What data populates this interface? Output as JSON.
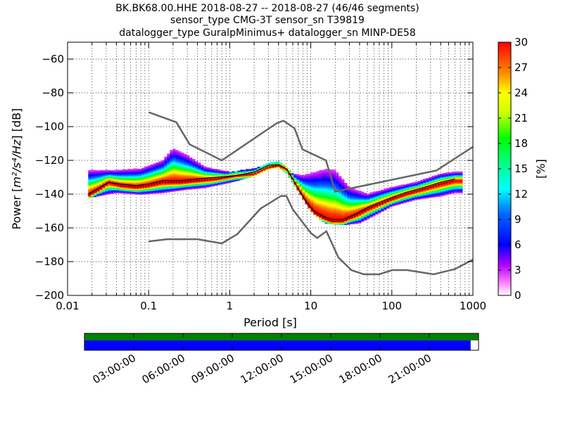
{
  "chart_data": {
    "type": "heatmap",
    "title_lines": [
      "BK.BK68.00.HHE   2018-08-27 -- 2018-08-27  (46/46 segments)",
      "sensor_type CMG-3T sensor_sn T39819",
      "datalogger_type GuralpMinimus+ datalogger_sn MINP-DE58"
    ],
    "xlabel": "Period [s]",
    "ylabel_prefix": "Power [",
    "ylabel_unit": "m²/s⁴/Hz",
    "ylabel_suffix": "] [dB]",
    "x_scale": "log",
    "xlim": [
      0.01,
      1000
    ],
    "ylim": [
      -200,
      -50
    ],
    "x_ticks": [
      {
        "v": 0.01,
        "label": "0.01"
      },
      {
        "v": 0.1,
        "label": "0.1"
      },
      {
        "v": 1,
        "label": "1"
      },
      {
        "v": 10,
        "label": "10"
      },
      {
        "v": 100,
        "label": "100"
      },
      {
        "v": 1000,
        "label": "1000"
      }
    ],
    "y_ticks": [
      {
        "v": -60,
        "label": "−60"
      },
      {
        "v": -80,
        "label": "−80"
      },
      {
        "v": -100,
        "label": "−100"
      },
      {
        "v": -120,
        "label": "−120"
      },
      {
        "v": -140,
        "label": "−140"
      },
      {
        "v": -160,
        "label": "−160"
      },
      {
        "v": -180,
        "label": "−180"
      },
      {
        "v": -200,
        "label": "−200"
      }
    ],
    "grid": true,
    "colorbar": {
      "label": "[%]",
      "range": [
        0,
        30
      ],
      "ticks": [
        {
          "v": 0,
          "label": "0"
        },
        {
          "v": 3,
          "label": "3"
        },
        {
          "v": 6,
          "label": "6"
        },
        {
          "v": 9,
          "label": "9"
        },
        {
          "v": 12,
          "label": "12"
        },
        {
          "v": 15,
          "label": "15"
        },
        {
          "v": 18,
          "label": "18"
        },
        {
          "v": 21,
          "label": "21"
        },
        {
          "v": 24,
          "label": "24"
        },
        {
          "v": 27,
          "label": "27"
        },
        {
          "v": 30,
          "label": "30"
        }
      ]
    },
    "nhnm": [
      [
        0.1,
        -91.5
      ],
      [
        0.22,
        -97.4
      ],
      [
        0.32,
        -110.5
      ],
      [
        0.8,
        -120
      ],
      [
        3.8,
        -98
      ],
      [
        4.6,
        -96.5
      ],
      [
        6.3,
        -101
      ],
      [
        7.9,
        -113.5
      ],
      [
        15.4,
        -120
      ],
      [
        20,
        -138.5
      ],
      [
        354.8,
        -126
      ],
      [
        1000,
        -112
      ]
    ],
    "nlnm": [
      [
        0.1,
        -168
      ],
      [
        0.17,
        -166.7
      ],
      [
        0.4,
        -166.7
      ],
      [
        0.8,
        -169.2
      ],
      [
        1.24,
        -163.7
      ],
      [
        2.4,
        -148.6
      ],
      [
        4.3,
        -141.1
      ],
      [
        5,
        -141.1
      ],
      [
        6,
        -149
      ],
      [
        10,
        -163
      ],
      [
        12,
        -166
      ],
      [
        15.6,
        -162
      ],
      [
        21.9,
        -177.5
      ],
      [
        31.6,
        -185
      ],
      [
        45,
        -187.5
      ],
      [
        70,
        -187.5
      ],
      [
        101,
        -185
      ],
      [
        154,
        -185
      ],
      [
        328,
        -187.5
      ],
      [
        600,
        -184.4
      ],
      [
        1000,
        -178.8
      ]
    ],
    "mean_curve": [
      [
        0.018,
        -140
      ],
      [
        0.025,
        -136
      ],
      [
        0.032,
        -133
      ],
      [
        0.045,
        -134
      ],
      [
        0.07,
        -135
      ],
      [
        0.1,
        -134
      ],
      [
        0.15,
        -132
      ],
      [
        0.25,
        -132
      ],
      [
        0.4,
        -131
      ],
      [
        0.7,
        -130
      ],
      [
        1.2,
        -129
      ],
      [
        2,
        -127
      ],
      [
        3,
        -123
      ],
      [
        4,
        -122.5
      ],
      [
        5,
        -125
      ],
      [
        6,
        -131
      ],
      [
        7,
        -137
      ],
      [
        9,
        -145
      ],
      [
        11,
        -150
      ],
      [
        14,
        -153
      ],
      [
        18,
        -155
      ],
      [
        25,
        -155
      ],
      [
        35,
        -152
      ],
      [
        50,
        -148
      ],
      [
        70,
        -145
      ],
      [
        100,
        -142
      ],
      [
        150,
        -139
      ],
      [
        250,
        -136
      ],
      [
        400,
        -133
      ],
      [
        600,
        -131
      ]
    ],
    "mode_curve": [
      [
        0.018,
        -141
      ],
      [
        0.025,
        -137
      ],
      [
        0.032,
        -133
      ],
      [
        0.045,
        -135
      ],
      [
        0.07,
        -136
      ],
      [
        0.1,
        -135
      ],
      [
        0.15,
        -133
      ],
      [
        0.25,
        -133
      ],
      [
        0.4,
        -132
      ],
      [
        0.7,
        -131
      ],
      [
        1.2,
        -129
      ],
      [
        2,
        -128
      ],
      [
        3,
        -124
      ],
      [
        4,
        -123
      ],
      [
        5,
        -125
      ],
      [
        6,
        -131
      ],
      [
        7,
        -137
      ],
      [
        9,
        -146
      ],
      [
        11,
        -151
      ],
      [
        14,
        -154
      ],
      [
        18,
        -156
      ],
      [
        25,
        -156
      ],
      [
        35,
        -153
      ],
      [
        50,
        -149
      ],
      [
        70,
        -146
      ],
      [
        100,
        -143
      ],
      [
        150,
        -140
      ],
      [
        250,
        -137
      ],
      [
        400,
        -134
      ],
      [
        600,
        -132
      ]
    ],
    "spread_upper": [
      [
        0.018,
        -126
      ],
      [
        0.04,
        -126
      ],
      [
        0.08,
        -125
      ],
      [
        0.15,
        -120
      ],
      [
        0.2,
        -113
      ],
      [
        0.3,
        -117
      ],
      [
        0.5,
        -124
      ],
      [
        1,
        -127
      ],
      [
        2,
        -125
      ],
      [
        3,
        -122
      ],
      [
        4,
        -121
      ],
      [
        5,
        -124
      ],
      [
        6,
        -128
      ],
      [
        8,
        -129
      ],
      [
        15,
        -125.5
      ],
      [
        20,
        -126
      ],
      [
        30,
        -136
      ],
      [
        50,
        -140
      ],
      [
        100,
        -136
      ],
      [
        200,
        -133
      ],
      [
        400,
        -128
      ],
      [
        600,
        -127
      ]
    ],
    "spread_lower": [
      [
        0.018,
        -142
      ],
      [
        0.04,
        -139
      ],
      [
        0.08,
        -140
      ],
      [
        0.15,
        -139
      ],
      [
        0.3,
        -137
      ],
      [
        0.5,
        -136
      ],
      [
        1,
        -133
      ],
      [
        2,
        -129
      ],
      [
        3,
        -125
      ],
      [
        4,
        -124
      ],
      [
        5,
        -127
      ],
      [
        6,
        -133
      ],
      [
        8,
        -142
      ],
      [
        10,
        -150
      ],
      [
        15,
        -157
      ],
      [
        25,
        -158
      ],
      [
        40,
        -157
      ],
      [
        70,
        -151
      ],
      [
        100,
        -147
      ],
      [
        200,
        -143
      ],
      [
        400,
        -141
      ],
      [
        600,
        -139
      ]
    ],
    "timeline": {
      "ticks": [
        "03:00:00",
        "06:00:00",
        "09:00:00",
        "12:00:00",
        "15:00:00",
        "18:00:00",
        "21:00:00"
      ],
      "tick_hours": [
        3,
        6,
        9,
        12,
        15,
        18,
        21
      ],
      "coverage_fraction": 0.98,
      "colors": {
        "data": "#008000",
        "segments": "#0000ff"
      }
    },
    "colors": {
      "reference_models": "#666666",
      "mean": "#000000",
      "mode": "#000000"
    }
  }
}
